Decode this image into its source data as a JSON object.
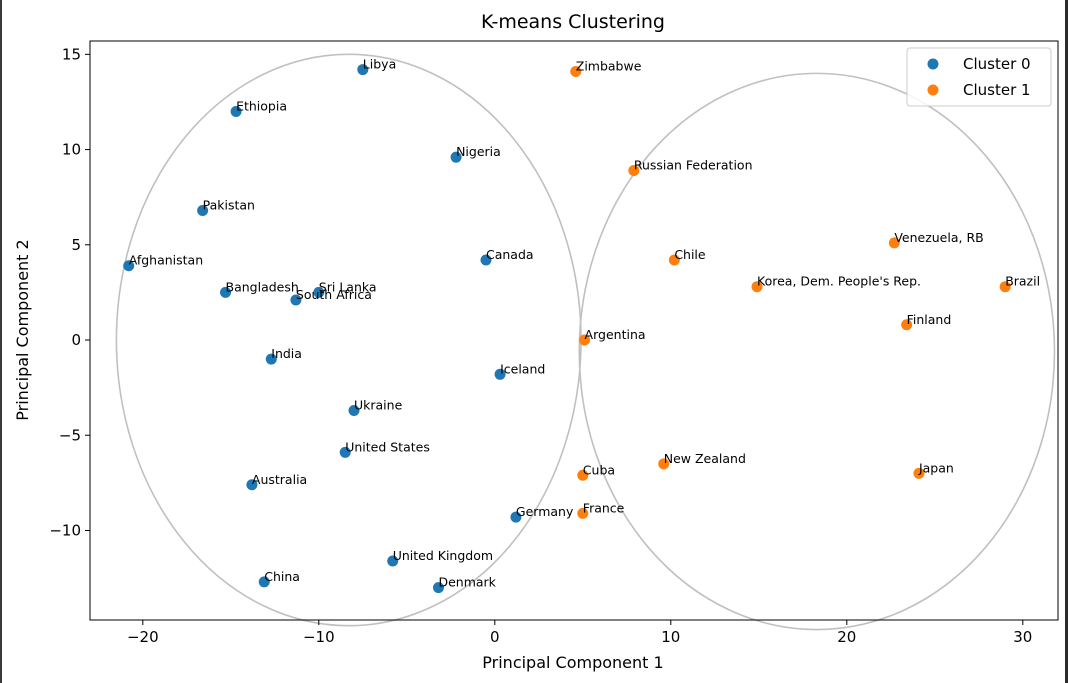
{
  "chart_data": {
    "type": "scatter",
    "title": "K-means Clustering",
    "xlabel": "Principal Component 1",
    "ylabel": "Principal Component 2",
    "xlim": [
      -23,
      32
    ],
    "ylim": [
      -14.7,
      15.7
    ],
    "xticks": [
      -20,
      -10,
      0,
      10,
      20,
      30
    ],
    "yticks": [
      -10,
      -5,
      0,
      5,
      10,
      15
    ],
    "xtick_labels": [
      "−20",
      "−10",
      "0",
      "10",
      "20",
      "30"
    ],
    "ytick_labels": [
      "−10",
      "−5",
      "0",
      "5",
      "10",
      "15"
    ],
    "grid": false,
    "legend": "top-right",
    "ellipses": [
      {
        "cx": -8.3,
        "cy": 0.0,
        "rx": 13.2,
        "ry": 15.0
      },
      {
        "cx": 18.3,
        "cy": -0.6,
        "rx": 13.5,
        "ry": 14.6
      }
    ],
    "series": [
      {
        "name": "Cluster 0",
        "color": "#1f77b4",
        "points": [
          {
            "label": "Libya",
            "x": -7.5,
            "y": 14.2
          },
          {
            "label": "Ethiopia",
            "x": -14.7,
            "y": 12.0
          },
          {
            "label": "Nigeria",
            "x": -2.2,
            "y": 9.6
          },
          {
            "label": "Pakistan",
            "x": -16.6,
            "y": 6.8
          },
          {
            "label": "Canada",
            "x": -0.5,
            "y": 4.2
          },
          {
            "label": "Afghanistan",
            "x": -20.8,
            "y": 3.9
          },
          {
            "label": "Bangladesh",
            "x": -15.3,
            "y": 2.5
          },
          {
            "label": "Sri Lanka",
            "x": -10.0,
            "y": 2.5
          },
          {
            "label": "South Africa",
            "x": -11.3,
            "y": 2.1
          },
          {
            "label": "India",
            "x": -12.7,
            "y": -1.0
          },
          {
            "label": "Iceland",
            "x": 0.3,
            "y": -1.8
          },
          {
            "label": "Ukraine",
            "x": -8.0,
            "y": -3.7
          },
          {
            "label": "United States",
            "x": -8.5,
            "y": -5.9
          },
          {
            "label": "Australia",
            "x": -13.8,
            "y": -7.6
          },
          {
            "label": "Germany",
            "x": 1.2,
            "y": -9.3
          },
          {
            "label": "United Kingdom",
            "x": -5.8,
            "y": -11.6
          },
          {
            "label": "China",
            "x": -13.1,
            "y": -12.7
          },
          {
            "label": "Denmark",
            "x": -3.2,
            "y": -13.0
          }
        ]
      },
      {
        "name": "Cluster 1",
        "color": "#ff7f0e",
        "points": [
          {
            "label": "Zimbabwe",
            "x": 4.6,
            "y": 14.1
          },
          {
            "label": "Russian Federation",
            "x": 7.9,
            "y": 8.9
          },
          {
            "label": "Venezuela, RB",
            "x": 22.7,
            "y": 5.1
          },
          {
            "label": "Chile",
            "x": 10.2,
            "y": 4.2
          },
          {
            "label": "Korea, Dem. People's Rep.",
            "x": 14.9,
            "y": 2.8
          },
          {
            "label": "Brazil",
            "x": 29.0,
            "y": 2.8
          },
          {
            "label": "Finland",
            "x": 23.4,
            "y": 0.8
          },
          {
            "label": "Argentina",
            "x": 5.1,
            "y": 0.0
          },
          {
            "label": "New Zealand",
            "x": 9.6,
            "y": -6.5
          },
          {
            "label": "Cuba",
            "x": 5.0,
            "y": -7.1
          },
          {
            "label": "Japan",
            "x": 24.1,
            "y": -7.0
          },
          {
            "label": "France",
            "x": 5.0,
            "y": -9.1
          }
        ]
      }
    ]
  }
}
